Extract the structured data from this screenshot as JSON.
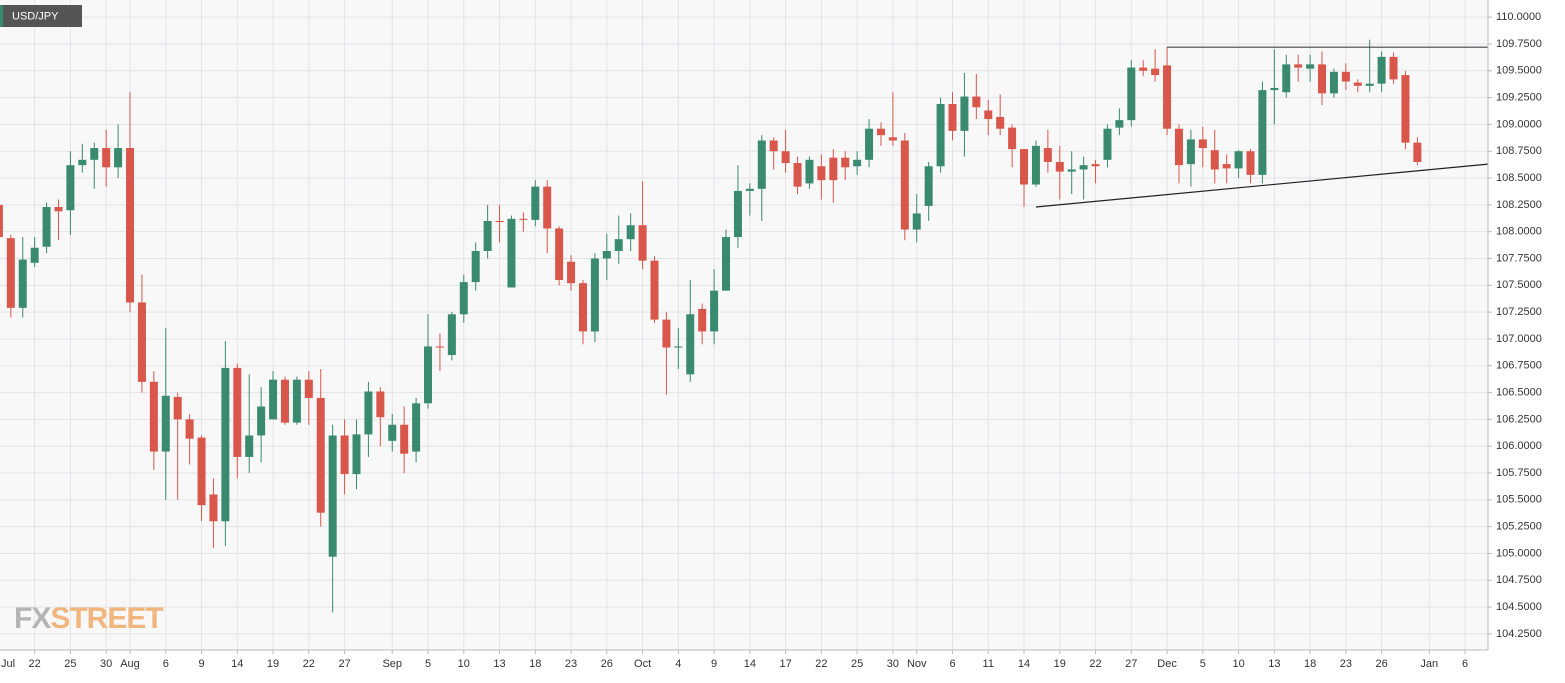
{
  "chart_data": {
    "type": "candlestick",
    "title": "USD/JPY",
    "watermark": [
      "FX",
      "STREET"
    ],
    "up_color": "#3a8a6f",
    "down_color": "#d9574a",
    "grid": true,
    "ylim": [
      104.1,
      110.16
    ],
    "yticks": [
      {
        "value": 104.25,
        "label": "104.2500"
      },
      {
        "value": 104.5,
        "label": "104.5000"
      },
      {
        "value": 104.75,
        "label": "104.7500"
      },
      {
        "value": 105,
        "label": "105.0000"
      },
      {
        "value": 105.25,
        "label": "105.2500"
      },
      {
        "value": 105.5,
        "label": "105.5000"
      },
      {
        "value": 105.75,
        "label": "105.7500"
      },
      {
        "value": 106,
        "label": "106.0000"
      },
      {
        "value": 106.25,
        "label": "106.2500"
      },
      {
        "value": 106.5,
        "label": "106.5000"
      },
      {
        "value": 106.75,
        "label": "106.7500"
      },
      {
        "value": 107,
        "label": "107.0000"
      },
      {
        "value": 107.25,
        "label": "107.2500"
      },
      {
        "value": 107.5,
        "label": "107.5000"
      },
      {
        "value": 107.75,
        "label": "107.7500"
      },
      {
        "value": 108,
        "label": "108.0000"
      },
      {
        "value": 108.25,
        "label": "108.2500"
      },
      {
        "value": 108.5,
        "label": "108.5000"
      },
      {
        "value": 108.75,
        "label": "108.7500"
      },
      {
        "value": 109,
        "label": "109.0000"
      },
      {
        "value": 109.25,
        "label": "109.2500"
      },
      {
        "value": 109.5,
        "label": "109.5000"
      },
      {
        "value": 109.75,
        "label": "109.7500"
      },
      {
        "value": 110,
        "label": "110.0000"
      }
    ],
    "categories": [
      "Jul",
      null,
      null,
      "22",
      null,
      null,
      "25",
      null,
      null,
      "30",
      null,
      "Aug",
      null,
      null,
      "6",
      null,
      null,
      "9",
      null,
      null,
      "14",
      null,
      null,
      "19",
      null,
      null,
      "22",
      null,
      null,
      "27",
      null,
      null,
      null,
      "Sep",
      null,
      null,
      "5",
      null,
      null,
      "10",
      null,
      null,
      "13",
      null,
      null,
      "18",
      null,
      null,
      "23",
      null,
      null,
      "26",
      null,
      null,
      "Oct",
      null,
      null,
      "4",
      null,
      null,
      "9",
      null,
      null,
      "14",
      null,
      null,
      "17",
      null,
      null,
      "22",
      null,
      null,
      "25",
      null,
      null,
      "30",
      null,
      "Nov",
      null,
      null,
      "6",
      null,
      null,
      "11",
      null,
      null,
      "14",
      null,
      null,
      "19",
      null,
      null,
      "22",
      null,
      null,
      "27",
      null,
      null,
      "Dec",
      null,
      null,
      "5",
      null,
      null,
      "10",
      null,
      null,
      "13",
      null,
      null,
      "18",
      null,
      null,
      "23",
      null,
      null,
      "26",
      null,
      null,
      null,
      "Jan",
      null,
      null,
      "6",
      null
    ],
    "open": [
      108.25,
      107.94,
      107.29,
      107.71,
      107.86,
      108.23,
      108.2,
      108.62,
      108.67,
      108.78,
      108.6,
      108.78,
      107.34,
      106.6,
      105.95,
      106.46,
      106.25,
      106.08,
      105.55,
      105.3,
      106.73,
      105.9,
      106.1,
      106.25,
      106.62,
      106.22,
      106.62,
      106.45,
      104.97,
      106.1,
      105.74,
      106.11,
      106.51,
      106.05,
      106.2,
      105.95,
      106.4,
      106.93,
      106.85,
      107.23,
      107.53,
      107.82,
      108.1,
      107.48,
      108.12,
      108.11,
      108.42,
      108.03,
      107.72,
      107.52,
      107.07,
      107.75,
      107.82,
      107.93,
      108.06,
      107.73,
      107.18,
      106.92,
      106.67,
      107.28,
      107.07,
      107.45,
      107.95,
      108.38,
      108.4,
      108.85,
      108.75,
      108.64,
      108.45,
      108.61,
      108.69,
      108.69,
      108.61,
      108.67,
      108.96,
      108.88,
      108.85,
      108.02,
      108.24,
      108.61,
      109.19,
      108.94,
      109.26,
      109.13,
      109.07,
      108.97,
      108.77,
      108.44,
      108.78,
      108.65,
      108.56,
      108.58,
      108.63,
      108.67,
      108.97,
      109.04,
      109.53,
      109.52,
      109.55,
      108.96,
      108.63,
      108.86,
      108.76,
      108.63,
      108.59,
      108.75,
      108.53,
      109.32,
      109.3,
      109.56,
      109.52,
      109.56,
      109.29,
      109.49,
      109.39,
      109.36,
      109.38,
      109.63,
      109.46,
      108.83,
      null,
      null,
      null,
      null,
      null
    ],
    "high": [
      108.32,
      107.97,
      107.95,
      107.95,
      108.27,
      108.3,
      108.75,
      108.82,
      108.83,
      108.95,
      109.0,
      109.3,
      107.6,
      106.7,
      107.1,
      106.5,
      106.3,
      106.1,
      105.7,
      106.98,
      106.77,
      106.67,
      106.55,
      106.7,
      106.65,
      106.65,
      106.7,
      106.72,
      106.2,
      106.25,
      106.25,
      106.6,
      106.55,
      106.3,
      106.37,
      106.45,
      107.23,
      107.05,
      107.25,
      107.6,
      107.9,
      108.25,
      108.25,
      108.15,
      108.18,
      108.48,
      108.48,
      108.05,
      107.78,
      107.55,
      107.8,
      107.98,
      108.15,
      108.17,
      108.47,
      107.77,
      107.25,
      107.1,
      107.55,
      107.33,
      107.65,
      108.02,
      108.62,
      108.45,
      108.9,
      108.88,
      108.95,
      108.7,
      108.7,
      108.72,
      108.77,
      108.75,
      108.75,
      109.05,
      109.02,
      109.3,
      108.92,
      108.35,
      108.65,
      109.25,
      109.3,
      109.48,
      109.47,
      109.23,
      109.28,
      109.0,
      108.77,
      108.85,
      108.95,
      108.8,
      108.75,
      108.7,
      108.67,
      109.0,
      109.15,
      109.6,
      109.6,
      109.7,
      109.72,
      109.0,
      108.95,
      108.98,
      108.95,
      108.72,
      108.76,
      108.77,
      109.4,
      109.7,
      109.65,
      109.65,
      109.65,
      109.68,
      109.52,
      109.57,
      109.42,
      109.79,
      109.68,
      109.67,
      109.5,
      108.88,
      null,
      null,
      null,
      null,
      null
    ],
    "low": [
      107.9,
      107.2,
      107.2,
      107.67,
      107.8,
      107.92,
      107.97,
      108.55,
      108.4,
      108.42,
      108.5,
      107.25,
      106.5,
      105.78,
      105.5,
      105.5,
      105.83,
      105.3,
      105.05,
      105.07,
      105.7,
      105.75,
      105.85,
      106.25,
      106.2,
      106.2,
      106.2,
      105.25,
      104.45,
      105.55,
      105.6,
      105.9,
      106.0,
      105.95,
      105.75,
      105.85,
      106.35,
      106.7,
      106.8,
      107.15,
      107.45,
      107.75,
      107.9,
      107.48,
      108.0,
      108.05,
      107.8,
      107.5,
      107.45,
      106.95,
      106.97,
      107.55,
      107.7,
      107.82,
      107.65,
      107.15,
      106.48,
      106.72,
      106.6,
      106.95,
      106.95,
      107.45,
      107.85,
      108.15,
      108.1,
      108.58,
      108.55,
      108.35,
      108.4,
      108.3,
      108.27,
      108.48,
      108.53,
      108.6,
      108.8,
      108.8,
      107.92,
      107.9,
      108.1,
      108.55,
      108.85,
      108.7,
      109.05,
      108.9,
      108.9,
      108.6,
      108.23,
      108.42,
      108.55,
      108.3,
      108.35,
      108.3,
      108.45,
      108.6,
      108.9,
      108.98,
      109.45,
      109.4,
      108.9,
      108.45,
      108.42,
      108.6,
      108.45,
      108.45,
      108.5,
      108.45,
      108.45,
      109.0,
      109.25,
      109.4,
      109.4,
      109.18,
      109.25,
      109.32,
      109.3,
      109.3,
      109.3,
      109.38,
      108.77,
      108.62,
      null,
      null,
      null,
      null,
      null
    ],
    "close": [
      107.95,
      107.29,
      107.74,
      107.85,
      108.23,
      108.19,
      108.62,
      108.67,
      108.78,
      108.6,
      108.78,
      107.34,
      106.6,
      105.95,
      106.47,
      106.25,
      106.07,
      105.45,
      105.3,
      106.73,
      105.9,
      106.1,
      106.37,
      106.62,
      106.22,
      106.62,
      106.45,
      105.38,
      106.1,
      105.74,
      106.11,
      106.51,
      106.27,
      106.2,
      105.93,
      106.4,
      106.93,
      106.92,
      107.23,
      107.53,
      107.82,
      108.1,
      108.09,
      108.12,
      108.11,
      108.42,
      108.03,
      107.55,
      107.52,
      107.07,
      107.75,
      107.82,
      107.93,
      108.06,
      107.73,
      107.18,
      106.92,
      106.93,
      107.23,
      107.07,
      107.45,
      107.95,
      108.38,
      108.4,
      108.85,
      108.75,
      108.64,
      108.42,
      108.67,
      108.48,
      108.48,
      108.6,
      108.67,
      108.96,
      108.9,
      108.85,
      108.02,
      108.17,
      108.61,
      109.19,
      108.94,
      109.26,
      109.16,
      109.05,
      108.96,
      108.77,
      108.44,
      108.8,
      108.65,
      108.56,
      108.58,
      108.62,
      108.61,
      108.96,
      109.04,
      109.53,
      109.5,
      109.46,
      108.96,
      108.62,
      108.86,
      108.78,
      108.58,
      108.59,
      108.75,
      108.53,
      109.32,
      109.34,
      109.56,
      109.53,
      109.56,
      109.29,
      109.49,
      109.4,
      109.36,
      109.38,
      109.63,
      109.42,
      108.83,
      108.65,
      null,
      null,
      null,
      null,
      null
    ],
    "trendlines": [
      {
        "values": [
          109.72,
          109.72
        ],
        "color": "#444444"
      },
      {
        "values": [
          108.23,
          108.63
        ],
        "color": "#222222"
      }
    ]
  }
}
